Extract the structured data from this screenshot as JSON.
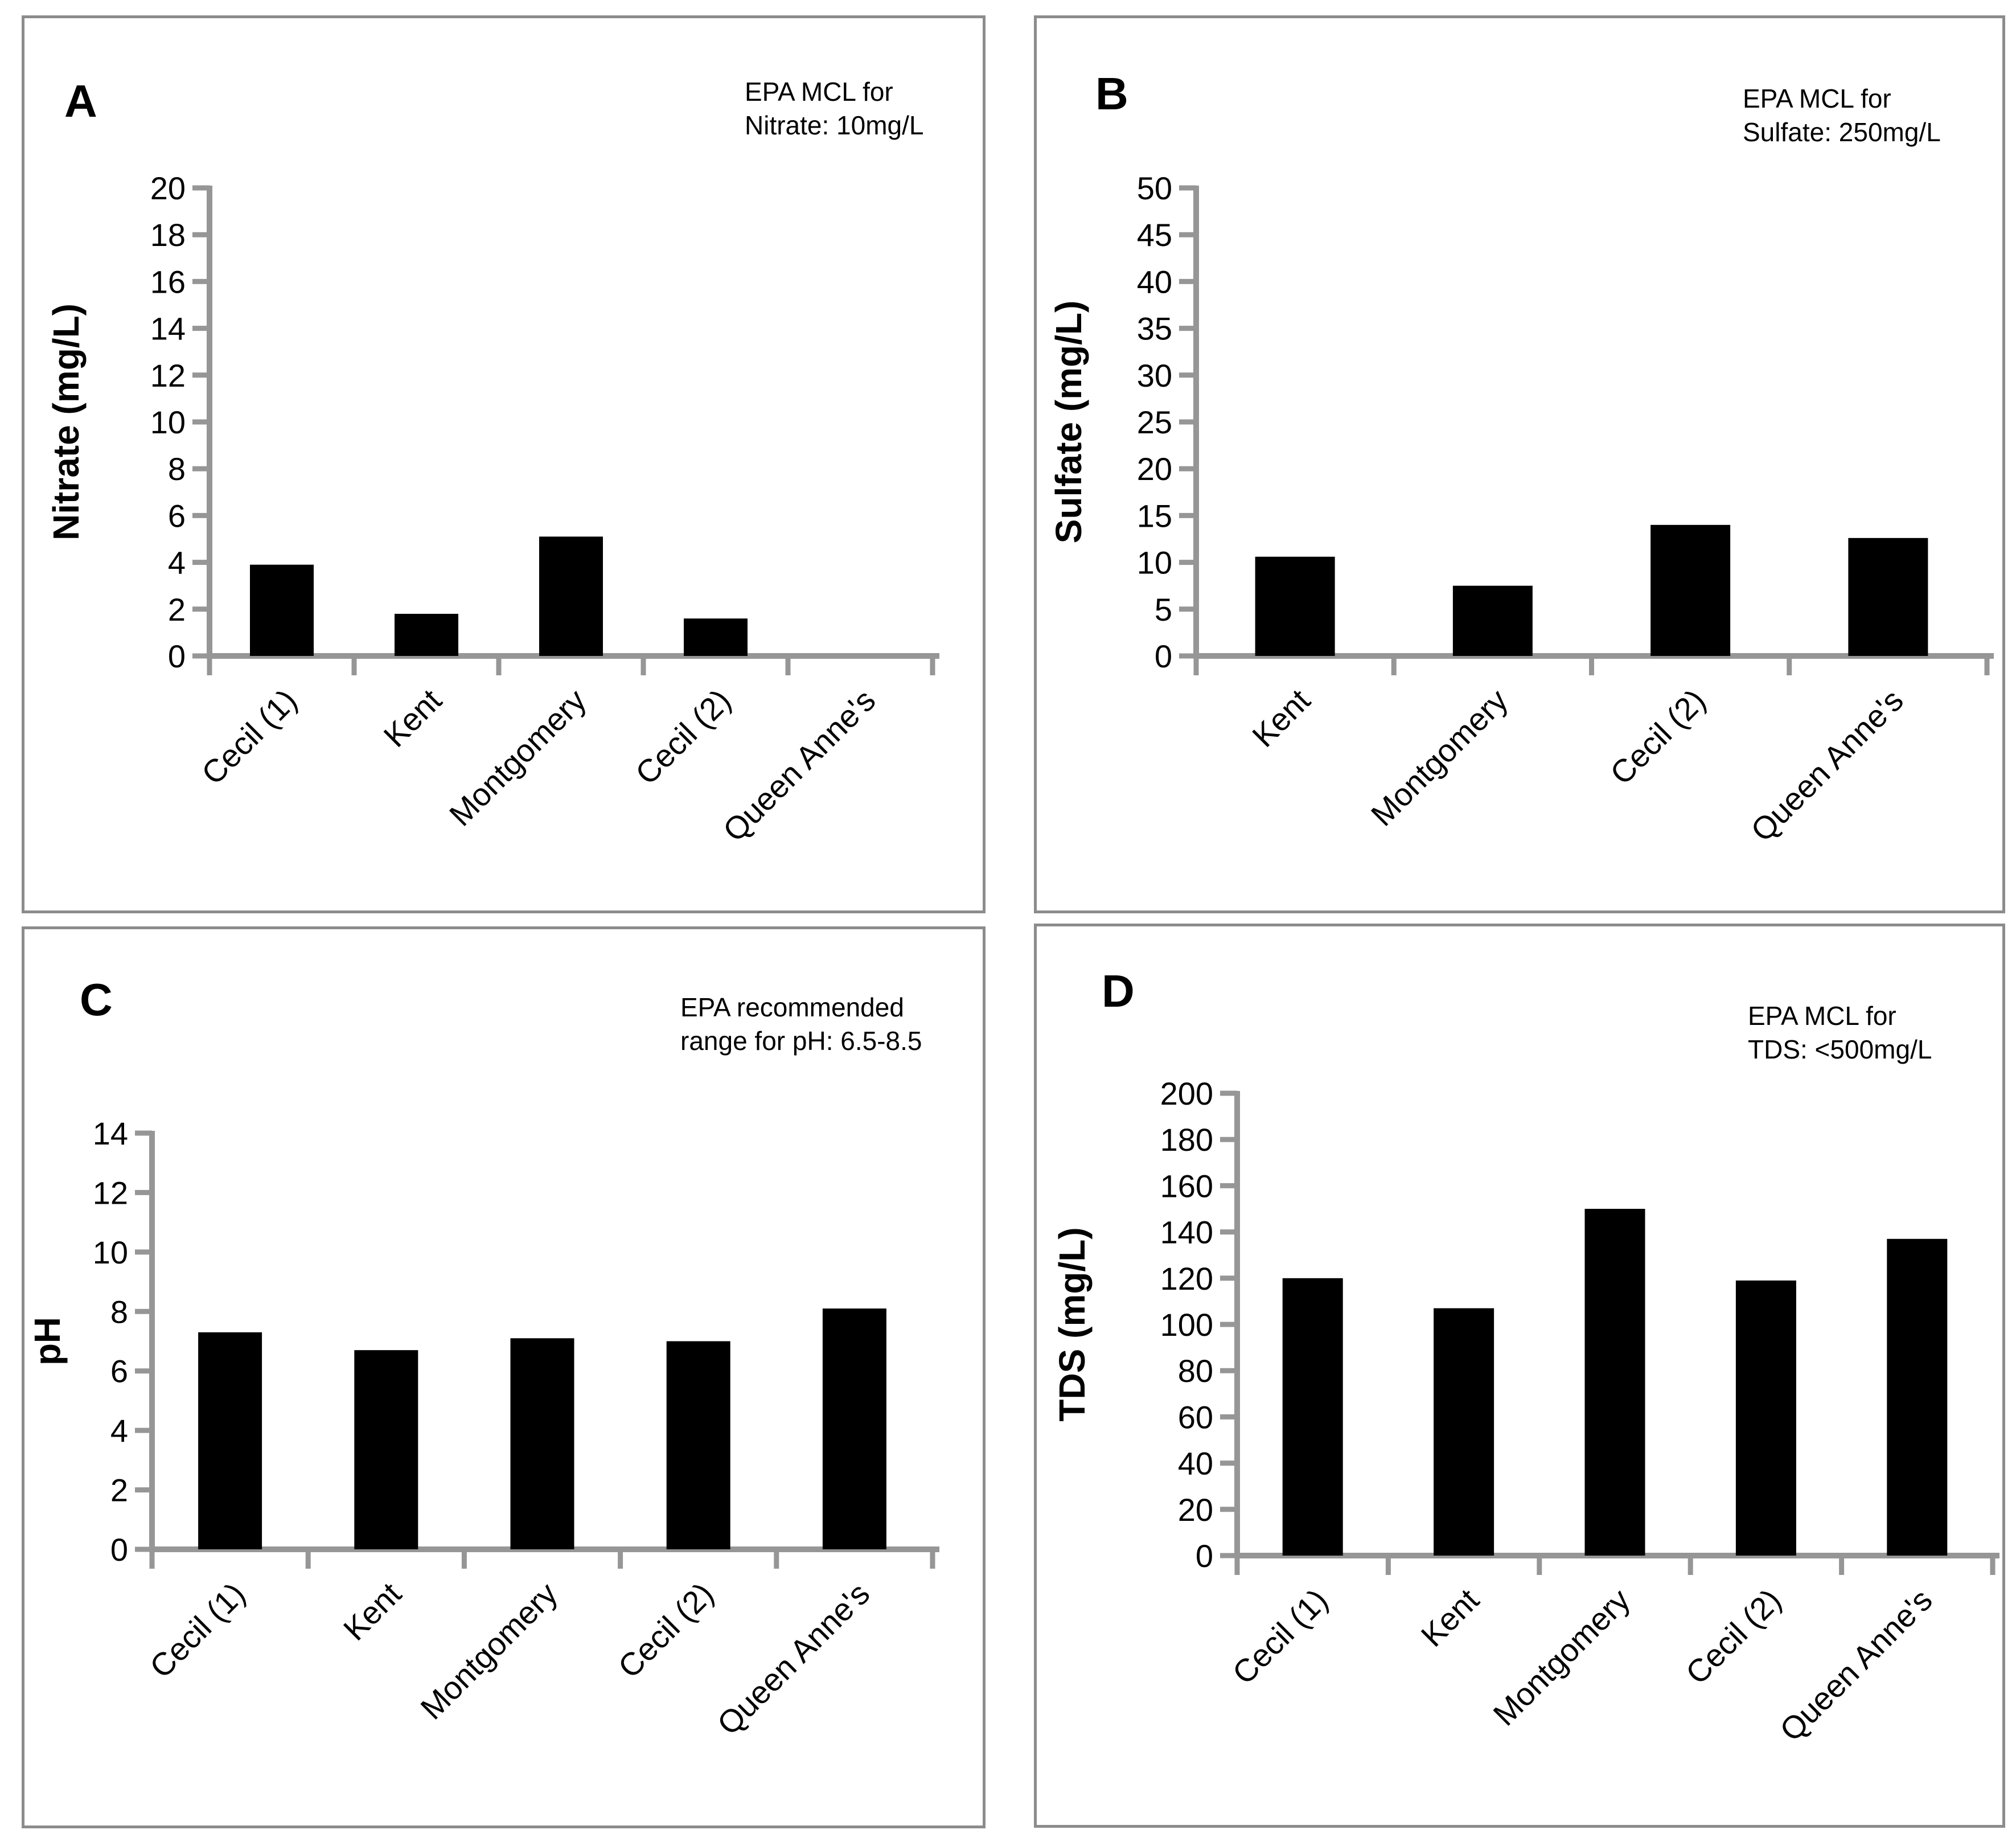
{
  "chart_data": [
    {
      "panel": "A",
      "type": "bar",
      "annotation_lines": [
        "EPA MCL for",
        "Nitrate: 10mg/L"
      ],
      "categories": [
        "Cecil (1)",
        "Kent",
        "Montgomery",
        "Cecil (2)",
        "Queen Anne's"
      ],
      "values": [
        3.9,
        1.8,
        5.1,
        1.6,
        0
      ],
      "xlabel": "",
      "ylabel": "Nitrate (mg/L)",
      "ylim": [
        0,
        20
      ],
      "ytick_step": 2,
      "grid": false,
      "legend": false
    },
    {
      "panel": "B",
      "type": "bar",
      "annotation_lines": [
        "EPA MCL for",
        "Sulfate: 250mg/L"
      ],
      "categories": [
        "Kent",
        "Montgomery",
        "Cecil (2)",
        "Queen Anne's"
      ],
      "values": [
        10.6,
        7.5,
        14,
        12.6
      ],
      "xlabel": "",
      "ylabel": "Sulfate (mg/L)",
      "ylim": [
        0,
        50
      ],
      "ytick_step": 5,
      "grid": false,
      "legend": false
    },
    {
      "panel": "C",
      "type": "bar",
      "annotation_lines": [
        "EPA recommended",
        "range for pH: 6.5-8.5"
      ],
      "categories": [
        "Cecil (1)",
        "Kent",
        "Montgomery",
        "Cecil (2)",
        "Queen Anne's"
      ],
      "values": [
        7.3,
        6.7,
        7.1,
        7.0,
        8.1
      ],
      "xlabel": "",
      "ylabel": "pH",
      "ylim": [
        0,
        14
      ],
      "ytick_step": 2,
      "grid": false,
      "legend": false
    },
    {
      "panel": "D",
      "type": "bar",
      "annotation_lines": [
        "EPA MCL for",
        "TDS: <500mg/L"
      ],
      "categories": [
        "Cecil (1)",
        "Kent",
        "Montgomery",
        "Cecil (2)",
        "Queen Anne's"
      ],
      "values": [
        120,
        107,
        150,
        119,
        137
      ],
      "xlabel": "",
      "ylabel": "TDS (mg/L)",
      "ylim": [
        0,
        200
      ],
      "ytick_step": 20,
      "grid": false,
      "legend": false
    }
  ],
  "colors": {
    "bar": "#000000",
    "axis": "#969696",
    "panel_border": "#8c8c8c",
    "text": "#000000",
    "background": "#ffffff"
  }
}
